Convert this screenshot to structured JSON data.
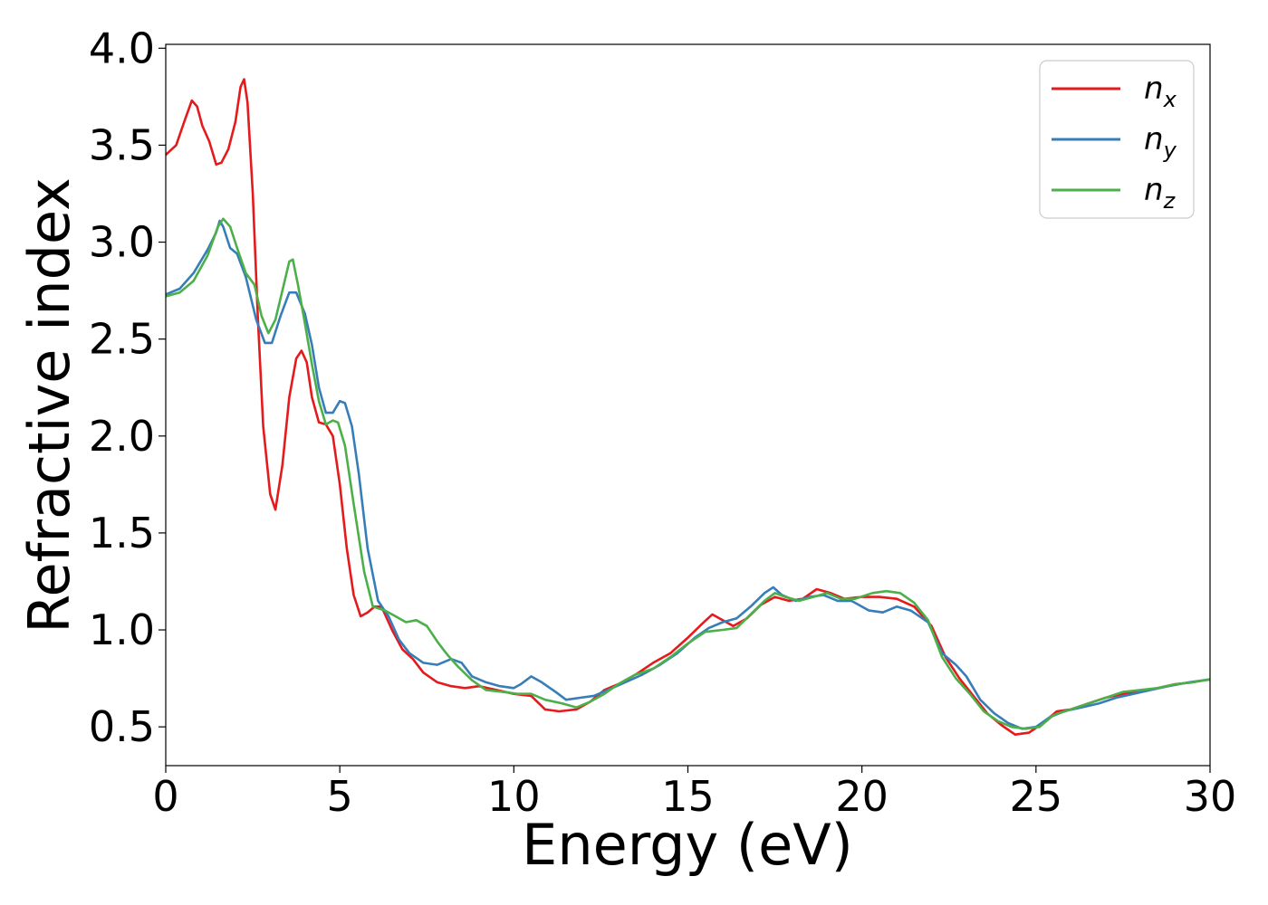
{
  "chart_data": {
    "type": "line",
    "xlabel": "Energy (eV)",
    "ylabel": "Refractive index",
    "xlim": [
      0,
      30
    ],
    "ylim": [
      0.3,
      4.02
    ],
    "xticks": [
      "0",
      "5",
      "10",
      "15",
      "20",
      "25",
      "30"
    ],
    "yticks": [
      "0.5",
      "1.0",
      "1.5",
      "2.0",
      "2.5",
      "3.0",
      "3.5",
      "4.0"
    ],
    "grid": false,
    "legend_position": "top-right",
    "series": [
      {
        "name": "n_x",
        "label_base": "n",
        "label_sub": "x",
        "color": "#e41a1c",
        "points": [
          [
            0,
            3.45
          ],
          [
            0.3,
            3.5
          ],
          [
            0.55,
            3.63
          ],
          [
            0.75,
            3.73
          ],
          [
            0.9,
            3.7
          ],
          [
            1.05,
            3.6
          ],
          [
            1.25,
            3.52
          ],
          [
            1.45,
            3.4
          ],
          [
            1.6,
            3.41
          ],
          [
            1.8,
            3.48
          ],
          [
            2.0,
            3.62
          ],
          [
            2.15,
            3.8
          ],
          [
            2.25,
            3.84
          ],
          [
            2.35,
            3.72
          ],
          [
            2.5,
            3.25
          ],
          [
            2.65,
            2.6
          ],
          [
            2.8,
            2.05
          ],
          [
            3.0,
            1.7
          ],
          [
            3.15,
            1.62
          ],
          [
            3.35,
            1.85
          ],
          [
            3.55,
            2.2
          ],
          [
            3.75,
            2.4
          ],
          [
            3.9,
            2.44
          ],
          [
            4.05,
            2.38
          ],
          [
            4.2,
            2.2
          ],
          [
            4.4,
            2.07
          ],
          [
            4.6,
            2.06
          ],
          [
            4.8,
            2.0
          ],
          [
            5.0,
            1.75
          ],
          [
            5.2,
            1.42
          ],
          [
            5.4,
            1.18
          ],
          [
            5.6,
            1.07
          ],
          [
            5.8,
            1.09
          ],
          [
            6.0,
            1.12
          ],
          [
            6.2,
            1.12
          ],
          [
            6.5,
            1.0
          ],
          [
            6.8,
            0.9
          ],
          [
            7.1,
            0.85
          ],
          [
            7.4,
            0.78
          ],
          [
            7.8,
            0.73
          ],
          [
            8.2,
            0.71
          ],
          [
            8.6,
            0.7
          ],
          [
            9.0,
            0.71
          ],
          [
            9.5,
            0.69
          ],
          [
            10.0,
            0.67
          ],
          [
            10.5,
            0.66
          ],
          [
            10.9,
            0.59
          ],
          [
            11.3,
            0.58
          ],
          [
            11.8,
            0.59
          ],
          [
            12.2,
            0.63
          ],
          [
            12.6,
            0.69
          ],
          [
            13.0,
            0.72
          ],
          [
            13.5,
            0.77
          ],
          [
            14.0,
            0.83
          ],
          [
            14.5,
            0.88
          ],
          [
            15.0,
            0.96
          ],
          [
            15.4,
            1.03
          ],
          [
            15.7,
            1.08
          ],
          [
            16.0,
            1.05
          ],
          [
            16.3,
            1.02
          ],
          [
            16.7,
            1.06
          ],
          [
            17.1,
            1.13
          ],
          [
            17.5,
            1.17
          ],
          [
            17.9,
            1.15
          ],
          [
            18.3,
            1.16
          ],
          [
            18.7,
            1.21
          ],
          [
            19.1,
            1.19
          ],
          [
            19.5,
            1.16
          ],
          [
            20.0,
            1.17
          ],
          [
            20.5,
            1.17
          ],
          [
            21.0,
            1.16
          ],
          [
            21.5,
            1.12
          ],
          [
            22.0,
            1.02
          ],
          [
            22.4,
            0.86
          ],
          [
            22.8,
            0.75
          ],
          [
            23.2,
            0.66
          ],
          [
            23.6,
            0.57
          ],
          [
            24.0,
            0.51
          ],
          [
            24.4,
            0.46
          ],
          [
            24.8,
            0.47
          ],
          [
            25.2,
            0.52
          ],
          [
            25.6,
            0.58
          ],
          [
            26.0,
            0.59
          ],
          [
            26.5,
            0.62
          ],
          [
            27.0,
            0.65
          ],
          [
            27.5,
            0.67
          ],
          [
            28.0,
            0.68
          ],
          [
            28.5,
            0.7
          ],
          [
            29.0,
            0.72
          ],
          [
            29.5,
            0.73
          ],
          [
            30.0,
            0.745
          ]
        ]
      },
      {
        "name": "n_y",
        "label_base": "n",
        "label_sub": "y",
        "color": "#377eb8",
        "points": [
          [
            0,
            2.73
          ],
          [
            0.4,
            2.76
          ],
          [
            0.8,
            2.84
          ],
          [
            1.2,
            2.96
          ],
          [
            1.45,
            3.05
          ],
          [
            1.55,
            3.11
          ],
          [
            1.65,
            3.08
          ],
          [
            1.85,
            2.97
          ],
          [
            2.05,
            2.94
          ],
          [
            2.3,
            2.82
          ],
          [
            2.6,
            2.6
          ],
          [
            2.85,
            2.48
          ],
          [
            3.05,
            2.48
          ],
          [
            3.3,
            2.62
          ],
          [
            3.55,
            2.74
          ],
          [
            3.75,
            2.74
          ],
          [
            4.0,
            2.63
          ],
          [
            4.2,
            2.47
          ],
          [
            4.4,
            2.25
          ],
          [
            4.6,
            2.12
          ],
          [
            4.8,
            2.12
          ],
          [
            5.0,
            2.18
          ],
          [
            5.15,
            2.17
          ],
          [
            5.35,
            2.05
          ],
          [
            5.55,
            1.8
          ],
          [
            5.8,
            1.42
          ],
          [
            6.1,
            1.15
          ],
          [
            6.4,
            1.07
          ],
          [
            6.7,
            0.95
          ],
          [
            7.0,
            0.88
          ],
          [
            7.4,
            0.83
          ],
          [
            7.8,
            0.82
          ],
          [
            8.2,
            0.85
          ],
          [
            8.5,
            0.83
          ],
          [
            8.8,
            0.76
          ],
          [
            9.2,
            0.73
          ],
          [
            9.6,
            0.71
          ],
          [
            10.0,
            0.7
          ],
          [
            10.2,
            0.72
          ],
          [
            10.5,
            0.76
          ],
          [
            10.8,
            0.73
          ],
          [
            11.2,
            0.68
          ],
          [
            11.5,
            0.64
          ],
          [
            11.9,
            0.65
          ],
          [
            12.3,
            0.66
          ],
          [
            12.7,
            0.69
          ],
          [
            13.2,
            0.73
          ],
          [
            13.7,
            0.77
          ],
          [
            14.2,
            0.82
          ],
          [
            14.7,
            0.88
          ],
          [
            15.2,
            0.96
          ],
          [
            15.6,
            1.01
          ],
          [
            16.0,
            1.04
          ],
          [
            16.4,
            1.06
          ],
          [
            16.8,
            1.12
          ],
          [
            17.2,
            1.19
          ],
          [
            17.45,
            1.22
          ],
          [
            17.7,
            1.18
          ],
          [
            18.1,
            1.15
          ],
          [
            18.5,
            1.17
          ],
          [
            18.9,
            1.18
          ],
          [
            19.3,
            1.15
          ],
          [
            19.7,
            1.15
          ],
          [
            20.2,
            1.1
          ],
          [
            20.6,
            1.09
          ],
          [
            21.0,
            1.12
          ],
          [
            21.4,
            1.1
          ],
          [
            21.9,
            1.04
          ],
          [
            22.3,
            0.88
          ],
          [
            22.7,
            0.82
          ],
          [
            23.0,
            0.76
          ],
          [
            23.4,
            0.64
          ],
          [
            23.8,
            0.57
          ],
          [
            24.2,
            0.52
          ],
          [
            24.6,
            0.49
          ],
          [
            25.0,
            0.5
          ],
          [
            25.4,
            0.55
          ],
          [
            25.8,
            0.58
          ],
          [
            26.3,
            0.6
          ],
          [
            26.8,
            0.62
          ],
          [
            27.3,
            0.65
          ],
          [
            27.8,
            0.67
          ],
          [
            28.3,
            0.69
          ],
          [
            28.8,
            0.71
          ],
          [
            29.4,
            0.73
          ],
          [
            30.0,
            0.745
          ]
        ]
      },
      {
        "name": "n_z",
        "label_base": "n",
        "label_sub": "z",
        "color": "#4daf4a",
        "points": [
          [
            0,
            2.72
          ],
          [
            0.4,
            2.74
          ],
          [
            0.8,
            2.8
          ],
          [
            1.2,
            2.93
          ],
          [
            1.5,
            3.08
          ],
          [
            1.65,
            3.12
          ],
          [
            1.85,
            3.08
          ],
          [
            2.05,
            2.97
          ],
          [
            2.3,
            2.84
          ],
          [
            2.55,
            2.78
          ],
          [
            2.75,
            2.62
          ],
          [
            2.95,
            2.53
          ],
          [
            3.15,
            2.6
          ],
          [
            3.35,
            2.75
          ],
          [
            3.55,
            2.9
          ],
          [
            3.65,
            2.91
          ],
          [
            3.8,
            2.78
          ],
          [
            4.0,
            2.58
          ],
          [
            4.2,
            2.37
          ],
          [
            4.4,
            2.18
          ],
          [
            4.6,
            2.06
          ],
          [
            4.8,
            2.08
          ],
          [
            4.95,
            2.07
          ],
          [
            5.15,
            1.95
          ],
          [
            5.4,
            1.65
          ],
          [
            5.7,
            1.3
          ],
          [
            5.95,
            1.12
          ],
          [
            6.3,
            1.1
          ],
          [
            6.6,
            1.07
          ],
          [
            6.9,
            1.04
          ],
          [
            7.2,
            1.05
          ],
          [
            7.5,
            1.02
          ],
          [
            7.8,
            0.94
          ],
          [
            8.1,
            0.87
          ],
          [
            8.4,
            0.81
          ],
          [
            8.8,
            0.74
          ],
          [
            9.2,
            0.69
          ],
          [
            9.7,
            0.68
          ],
          [
            10.1,
            0.67
          ],
          [
            10.5,
            0.67
          ],
          [
            10.9,
            0.64
          ],
          [
            11.4,
            0.62
          ],
          [
            11.8,
            0.6
          ],
          [
            12.2,
            0.63
          ],
          [
            12.6,
            0.67
          ],
          [
            13.0,
            0.72
          ],
          [
            13.5,
            0.77
          ],
          [
            14.0,
            0.8
          ],
          [
            14.5,
            0.86
          ],
          [
            15.0,
            0.93
          ],
          [
            15.5,
            0.99
          ],
          [
            16.0,
            1.0
          ],
          [
            16.4,
            1.01
          ],
          [
            16.8,
            1.08
          ],
          [
            17.2,
            1.15
          ],
          [
            17.5,
            1.19
          ],
          [
            17.8,
            1.17
          ],
          [
            18.2,
            1.15
          ],
          [
            18.6,
            1.17
          ],
          [
            19.0,
            1.19
          ],
          [
            19.4,
            1.16
          ],
          [
            19.8,
            1.16
          ],
          [
            20.3,
            1.19
          ],
          [
            20.7,
            1.2
          ],
          [
            21.1,
            1.19
          ],
          [
            21.5,
            1.14
          ],
          [
            21.9,
            1.05
          ],
          [
            22.3,
            0.86
          ],
          [
            22.7,
            0.75
          ],
          [
            23.1,
            0.67
          ],
          [
            23.5,
            0.58
          ],
          [
            23.9,
            0.53
          ],
          [
            24.3,
            0.5
          ],
          [
            24.7,
            0.49
          ],
          [
            25.1,
            0.5
          ],
          [
            25.5,
            0.56
          ],
          [
            26.0,
            0.59
          ],
          [
            26.5,
            0.62
          ],
          [
            27.0,
            0.65
          ],
          [
            27.5,
            0.68
          ],
          [
            28.0,
            0.69
          ],
          [
            28.5,
            0.7
          ],
          [
            29.0,
            0.72
          ],
          [
            29.5,
            0.73
          ],
          [
            30.0,
            0.745
          ]
        ]
      }
    ]
  }
}
